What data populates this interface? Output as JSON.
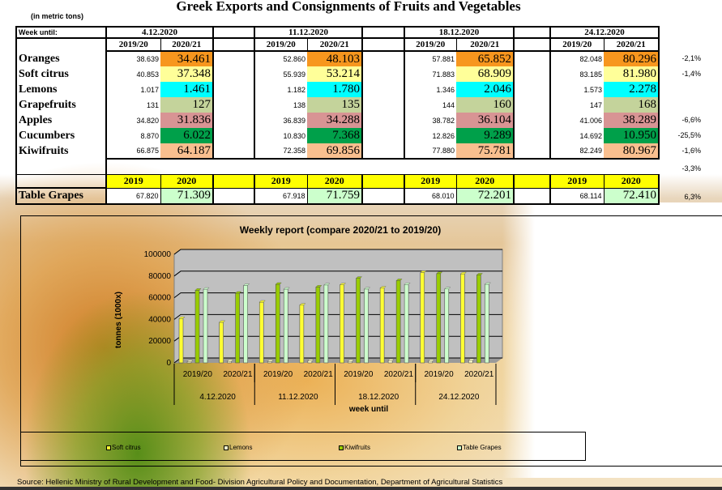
{
  "title": "Greek Exports and Consignments of Fruits and Vegetables",
  "unit": "(in metric tons)",
  "table": {
    "week_label": "Week until:",
    "weeks": [
      "4.12.2020",
      "11.12.2020",
      "18.12.2020",
      "24.12.2020"
    ],
    "season_headers": [
      "2019/20",
      "2020/21"
    ],
    "rows": [
      {
        "name": "Oranges",
        "color": "#f7961e",
        "values": [
          [
            "38.639",
            "34.461"
          ],
          [
            "52.860",
            "48.103"
          ],
          [
            "57.881",
            "65.852"
          ],
          [
            "82.048",
            "80.296"
          ]
        ],
        "change": "-2,1%"
      },
      {
        "name": "Soft citrus",
        "color": "#ffff99",
        "values": [
          [
            "40.853",
            "37.348"
          ],
          [
            "55.939",
            "53.214"
          ],
          [
            "71.883",
            "68.909"
          ],
          [
            "83.185",
            "81.980"
          ]
        ],
        "change": "-1,4%"
      },
      {
        "name": "Lemons",
        "color": "#00ffff",
        "values": [
          [
            "1.017",
            "1.461"
          ],
          [
            "1.182",
            "1.780"
          ],
          [
            "1.346",
            "2.046"
          ],
          [
            "1.573",
            "2.278"
          ]
        ],
        "change": ""
      },
      {
        "name": "Grapefruits",
        "color": "#c4d39b",
        "values": [
          [
            "131",
            "127"
          ],
          [
            "138",
            "135"
          ],
          [
            "144",
            "160"
          ],
          [
            "147",
            "168"
          ]
        ],
        "change": ""
      },
      {
        "name": "Apples",
        "color": "#d89494",
        "values": [
          [
            "34.820",
            "31.836"
          ],
          [
            "36.839",
            "34.288"
          ],
          [
            "38.782",
            "36.104"
          ],
          [
            "41.006",
            "38.289"
          ]
        ],
        "change": "-6,6%"
      },
      {
        "name": "Cucumbers",
        "color": "#00a04a",
        "values": [
          [
            "8.870",
            "6.022"
          ],
          [
            "10.830",
            "7.368"
          ],
          [
            "12.826",
            "9.289"
          ],
          [
            "14.692",
            "10.950"
          ]
        ],
        "change": "-25,5%"
      },
      {
        "name": "Kiwifruits",
        "color": "#f9bf8f",
        "values": [
          [
            "66.875",
            "64.187"
          ],
          [
            "72.358",
            "69.856"
          ],
          [
            "77.880",
            "75.781"
          ],
          [
            "82.249",
            "80.967"
          ]
        ],
        "change": "-1,6%"
      }
    ],
    "total_change": "-3,3%",
    "grape_headers": [
      "2019",
      "2020"
    ],
    "grapes": {
      "name": "Table Grapes",
      "color": "#ccffcc",
      "values": [
        [
          "67.820",
          "71.309"
        ],
        [
          "67.918",
          "71.759"
        ],
        [
          "68.010",
          "72.201"
        ],
        [
          "68.114",
          "72.410"
        ]
      ],
      "change": "6,3%"
    }
  },
  "chart_data": {
    "type": "bar",
    "title": "Weekly report (compare 2020/21 to 2019/20)",
    "ylabel": "tonnes (1000x)",
    "xlabel": "week until",
    "ylim": [
      0,
      100000
    ],
    "yticks": [
      "0",
      "20000",
      "40000",
      "60000",
      "80000",
      "100000"
    ],
    "categories": [
      "2019/20",
      "2020/21",
      "2019/20",
      "2020/21",
      "2019/20",
      "2020/21",
      "2019/20",
      "2020/21"
    ],
    "groups": [
      "4.12.2020",
      "11.12.2020",
      "18.12.2020",
      "24.12.2020"
    ],
    "series": [
      {
        "name": "Soft citrus",
        "color": "#ffff33",
        "values": [
          40853,
          37348,
          55939,
          53214,
          71883,
          68909,
          83185,
          81980
        ]
      },
      {
        "name": "Lemons",
        "color": "#ffffcc",
        "values": [
          1017,
          1461,
          1182,
          1780,
          1346,
          2046,
          1573,
          2278
        ]
      },
      {
        "name": "Kiwifruits",
        "color": "#99cc00",
        "values": [
          66875,
          64187,
          72358,
          69856,
          77880,
          75781,
          82249,
          80967
        ]
      },
      {
        "name": "Table Grapes",
        "color": "#ccffcc",
        "values": [
          67820,
          71309,
          67918,
          71759,
          68010,
          72201,
          68114,
          72410
        ]
      }
    ]
  },
  "source": "Source: Hellenic Ministry of Rural Development and Food- Division Agricultural Policy and Documentation, Department of Agricultural Statistics"
}
